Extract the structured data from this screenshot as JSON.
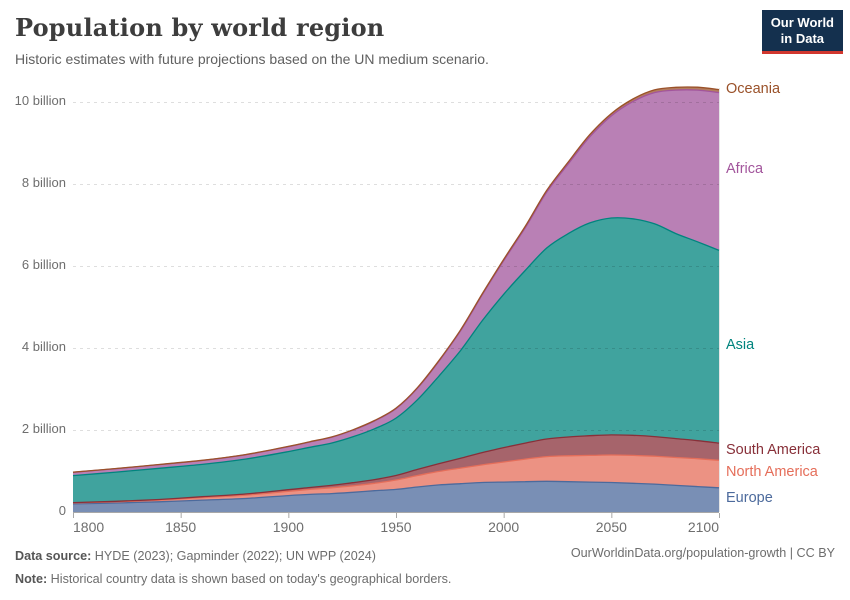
{
  "header": {
    "title": "Population by world region",
    "subtitle": "Historic estimates with future projections based on the UN medium scenario.",
    "logo_line1": "Our World",
    "logo_line2": "in Data",
    "logo_bg": "#14304e",
    "logo_accent": "#d1372e"
  },
  "chart_data": {
    "type": "area",
    "stacked": true,
    "grid": "dashed-horizontal",
    "legend_position": "right",
    "xlim": [
      1800,
      2100
    ],
    "ylim": [
      0,
      10.5
    ],
    "unit": "billion people",
    "x": [
      1800,
      1820,
      1840,
      1860,
      1880,
      1900,
      1910,
      1920,
      1930,
      1940,
      1950,
      1960,
      1970,
      1980,
      1990,
      2000,
      2010,
      2020,
      2030,
      2040,
      2050,
      2060,
      2070,
      2080,
      2090,
      2100
    ],
    "series": [
      {
        "name": "Europe",
        "color": "#4c6a9c",
        "values": [
          0.2,
          0.22,
          0.25,
          0.29,
          0.33,
          0.4,
          0.43,
          0.45,
          0.48,
          0.52,
          0.55,
          0.61,
          0.66,
          0.69,
          0.72,
          0.73,
          0.74,
          0.75,
          0.74,
          0.73,
          0.72,
          0.7,
          0.68,
          0.65,
          0.62,
          0.59
        ]
      },
      {
        "name": "North America",
        "color": "#e56e5a",
        "values": [
          0.02,
          0.03,
          0.04,
          0.06,
          0.08,
          0.105,
          0.12,
          0.14,
          0.16,
          0.18,
          0.23,
          0.28,
          0.33,
          0.38,
          0.43,
          0.49,
          0.55,
          0.6,
          0.63,
          0.65,
          0.67,
          0.68,
          0.68,
          0.68,
          0.68,
          0.67
        ]
      },
      {
        "name": "South America",
        "color": "#883039",
        "values": [
          0.009,
          0.012,
          0.016,
          0.022,
          0.03,
          0.038,
          0.048,
          0.06,
          0.075,
          0.09,
          0.11,
          0.15,
          0.19,
          0.24,
          0.3,
          0.35,
          0.39,
          0.43,
          0.46,
          0.48,
          0.49,
          0.49,
          0.48,
          0.46,
          0.44,
          0.42
        ]
      },
      {
        "name": "Asia",
        "color": "#00847e",
        "values": [
          0.66,
          0.71,
          0.76,
          0.79,
          0.85,
          0.93,
          0.98,
          1.03,
          1.12,
          1.24,
          1.4,
          1.7,
          2.14,
          2.63,
          3.21,
          3.74,
          4.21,
          4.66,
          4.96,
          5.19,
          5.29,
          5.28,
          5.19,
          5.0,
          4.85,
          4.7
        ]
      },
      {
        "name": "Africa",
        "color": "#a2559c",
        "values": [
          0.08,
          0.085,
          0.09,
          0.095,
          0.105,
          0.12,
          0.13,
          0.14,
          0.16,
          0.19,
          0.23,
          0.28,
          0.36,
          0.48,
          0.63,
          0.82,
          1.04,
          1.36,
          1.7,
          2.1,
          2.49,
          2.86,
          3.2,
          3.5,
          3.7,
          3.85
        ]
      },
      {
        "name": "Oceania",
        "color": "#9a5129",
        "values": [
          0.002,
          0.003,
          0.003,
          0.004,
          0.005,
          0.006,
          0.007,
          0.009,
          0.01,
          0.011,
          0.013,
          0.016,
          0.02,
          0.023,
          0.027,
          0.031,
          0.037,
          0.044,
          0.049,
          0.054,
          0.058,
          0.062,
          0.065,
          0.068,
          0.07,
          0.072
        ]
      }
    ],
    "yticks": [
      {
        "value": 0,
        "label": "0"
      },
      {
        "value": 2,
        "label": "2 billion"
      },
      {
        "value": 4,
        "label": "4 billion"
      },
      {
        "value": 6,
        "label": "6 billion"
      },
      {
        "value": 8,
        "label": "8 billion"
      },
      {
        "value": 10,
        "label": "10 billion"
      }
    ],
    "xticks": [
      1800,
      1850,
      1900,
      1950,
      2000,
      2050,
      2100
    ]
  },
  "footer": {
    "source_label": "Data source:",
    "source_text": " HYDE (2023); Gapminder (2022); UN WPP (2024)",
    "note_label": "Note:",
    "note_text": " Historical country data is shown based on today's geographical borders.",
    "link": "OurWorldinData.org/population-growth | CC BY"
  }
}
